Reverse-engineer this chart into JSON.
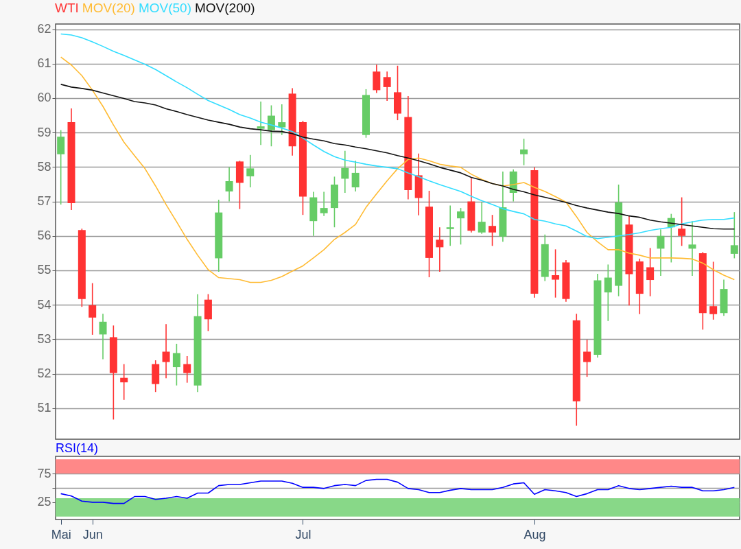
{
  "chart_data": [
    {
      "type": "candlestick",
      "grid": "y",
      "tick_labels": "y",
      "categories": [
        null,
        null,
        null,
        null,
        null,
        null,
        null,
        null,
        null,
        null,
        null,
        null,
        null,
        null,
        null,
        null,
        null,
        null,
        null,
        null,
        null,
        null,
        null,
        null,
        null,
        null,
        null,
        null,
        null,
        null,
        null,
        null,
        null,
        null,
        null,
        null,
        null,
        null,
        null,
        null,
        null,
        null,
        null,
        null,
        null,
        null,
        null,
        null,
        null,
        null,
        null,
        null,
        null,
        null,
        null,
        null,
        null,
        null,
        null,
        null,
        null,
        null,
        null,
        null,
        null
      ],
      "ylim": [
        50.1,
        62.15
      ],
      "yticks": [
        51,
        52,
        53,
        54,
        55,
        56,
        57,
        58,
        59,
        60,
        61,
        62
      ],
      "series": [
        {
          "name": "WTI",
          "type": "candlestick",
          "color": "#ff3333",
          "ohlc": [
            [
              58.37,
              59.07,
              56.91,
              58.88
            ],
            [
              59.3,
              59.7,
              56.75,
              56.95
            ],
            [
              56.17,
              56.21,
              53.94,
              54.17
            ],
            [
              53.99,
              54.63,
              53.13,
              53.63
            ],
            [
              53.14,
              53.74,
              52.42,
              53.51
            ],
            [
              53.06,
              53.4,
              50.67,
              52.02
            ],
            [
              51.88,
              52.28,
              51.24,
              51.75
            ],
            null,
            null,
            [
              52.28,
              52.39,
              51.47,
              51.7
            ],
            [
              52.64,
              53.44,
              51.87,
              52.34
            ],
            [
              52.19,
              52.87,
              51.66,
              52.6
            ],
            [
              52.28,
              52.51,
              51.74,
              52.02
            ],
            [
              51.66,
              54.31,
              51.47,
              53.67
            ],
            [
              54.15,
              54.31,
              53.24,
              53.58
            ],
            [
              55.35,
              57.05,
              54.96,
              56.68
            ],
            [
              57.29,
              57.99,
              57.0,
              57.59
            ],
            [
              58.16,
              58.18,
              56.78,
              57.54
            ],
            [
              57.73,
              58.35,
              57.41,
              57.96
            ],
            [
              59.11,
              59.9,
              58.64,
              59.18
            ],
            [
              59.07,
              59.79,
              58.6,
              59.49
            ],
            [
              59.15,
              59.82,
              58.93,
              59.3
            ],
            [
              60.13,
              60.29,
              58.33,
              58.6
            ],
            [
              59.3,
              59.34,
              56.61,
              57.14
            ],
            [
              56.43,
              57.28,
              56.0,
              57.12
            ],
            [
              56.66,
              57.28,
              56.58,
              56.81
            ],
            [
              56.81,
              57.72,
              56.25,
              57.49
            ],
            [
              57.66,
              58.47,
              57.25,
              57.97
            ],
            [
              57.41,
              58.18,
              57.29,
              57.83
            ],
            [
              58.93,
              60.26,
              58.85,
              60.09
            ],
            [
              60.77,
              60.97,
              60.15,
              60.23
            ],
            [
              60.61,
              60.77,
              59.92,
              60.32
            ],
            [
              60.17,
              60.94,
              59.36,
              59.55
            ],
            [
              59.45,
              60.06,
              57.06,
              57.33
            ],
            [
              57.76,
              58.39,
              56.6,
              57.1
            ],
            [
              56.85,
              57.31,
              54.8,
              55.36
            ],
            [
              55.89,
              56.25,
              54.96,
              55.67
            ],
            [
              56.2,
              56.88,
              55.71,
              56.25
            ],
            [
              56.51,
              56.81,
              55.75,
              56.71
            ],
            [
              57.0,
              57.68,
              56.1,
              56.15
            ],
            [
              56.1,
              56.98,
              56.06,
              56.41
            ],
            [
              56.29,
              56.61,
              55.71,
              56.1
            ],
            [
              55.98,
              57.87,
              55.83,
              56.83
            ],
            [
              57.25,
              57.93,
              57.0,
              57.87
            ],
            [
              58.37,
              58.82,
              58.05,
              58.51
            ],
            [
              57.91,
              57.99,
              54.21,
              54.32
            ],
            [
              54.81,
              56.04,
              54.69,
              55.76
            ],
            [
              54.86,
              55.61,
              54.21,
              54.73
            ],
            [
              55.23,
              55.3,
              54.09,
              54.17
            ],
            [
              53.55,
              53.74,
              50.49,
              51.2
            ],
            [
              52.64,
              52.99,
              51.91,
              52.34
            ],
            [
              52.55,
              54.9,
              52.47,
              54.71
            ],
            [
              54.36,
              55.17,
              53.53,
              54.79
            ],
            [
              54.55,
              57.49,
              54.25,
              56.97
            ],
            [
              56.33,
              56.58,
              53.98,
              54.89
            ],
            [
              55.26,
              55.34,
              53.73,
              54.32
            ],
            [
              55.09,
              55.65,
              54.25,
              54.72
            ],
            [
              55.63,
              56.19,
              54.84,
              56.0
            ],
            [
              56.25,
              56.64,
              55.23,
              56.52
            ],
            [
              56.21,
              57.12,
              55.71,
              56.0
            ],
            [
              55.63,
              56.43,
              54.84,
              55.75
            ],
            [
              55.5,
              55.53,
              53.28,
              53.76
            ],
            [
              53.96,
              55.25,
              53.57,
              53.73
            ],
            [
              53.76,
              54.73,
              53.68,
              54.46
            ],
            [
              55.48,
              56.69,
              55.35,
              55.73
            ]
          ],
          "colors": [
            "#66cc66",
            "#ff3333",
            "#ff3333",
            "#ff3333",
            "#66cc66",
            "#ff3333",
            "#ff3333",
            null,
            null,
            "#ff3333",
            "#ff3333",
            "#66cc66",
            "#ff3333",
            "#66cc66",
            "#ff3333",
            "#66cc66",
            "#66cc66",
            "#ff3333",
            "#66cc66",
            "#66cc66",
            "#66cc66",
            "#66cc66",
            "#ff3333",
            "#ff3333",
            "#66cc66",
            "#66cc66",
            "#66cc66",
            "#66cc66",
            "#66cc66",
            "#66cc66",
            "#ff3333",
            "#ff3333",
            "#ff3333",
            "#ff3333",
            "#ff3333",
            "#ff3333",
            "#ff3333",
            "#66cc66",
            "#66cc66",
            "#ff3333",
            "#66cc66",
            "#ff3333",
            "#66cc66",
            "#66cc66",
            "#66cc66",
            "#ff3333",
            "#66cc66",
            "#ff3333",
            "#ff3333",
            "#ff3333",
            "#ff3333",
            "#66cc66",
            "#66cc66",
            "#66cc66",
            "#ff3333",
            "#ff3333",
            "#ff3333",
            "#66cc66",
            "#66cc66",
            "#ff3333",
            "#66cc66",
            "#ff3333",
            "#ff3333",
            "#66cc66",
            "#66cc66"
          ]
        },
        {
          "name": "MOV(20)",
          "type": "line",
          "color": "#ffbb33",
          "values": [
            61.19,
            60.96,
            60.65,
            60.23,
            59.76,
            59.22,
            58.72,
            58.33,
            57.95,
            57.45,
            56.91,
            56.41,
            55.9,
            55.44,
            55.02,
            54.79,
            54.76,
            54.73,
            54.65,
            54.65,
            54.71,
            54.82,
            54.98,
            55.13,
            55.36,
            55.6,
            55.9,
            56.1,
            56.33,
            56.83,
            57.22,
            57.6,
            57.95,
            58.22,
            58.26,
            58.18,
            58.08,
            58.03,
            57.99,
            57.79,
            57.64,
            57.52,
            57.45,
            57.49,
            57.55,
            57.41,
            57.29,
            57.14,
            56.98,
            56.56,
            56.1,
            55.83,
            55.6,
            55.6,
            55.5,
            55.44,
            55.36,
            55.36,
            55.36,
            55.35,
            55.33,
            55.21,
            55.02,
            54.86,
            54.73
          ]
        },
        {
          "name": "MOV(50)",
          "type": "line",
          "color": "#33ddff",
          "values": [
            61.86,
            61.83,
            61.75,
            61.63,
            61.5,
            61.36,
            61.24,
            61.11,
            60.98,
            60.83,
            60.65,
            60.47,
            60.3,
            60.11,
            59.93,
            59.8,
            59.67,
            59.52,
            59.42,
            59.3,
            59.22,
            59.13,
            59.03,
            58.84,
            58.64,
            58.45,
            58.3,
            58.2,
            58.14,
            58.08,
            58.03,
            57.99,
            57.95,
            57.83,
            57.72,
            57.6,
            57.49,
            57.39,
            57.29,
            57.15,
            57.02,
            56.91,
            56.79,
            56.71,
            56.64,
            56.48,
            56.43,
            56.35,
            56.29,
            56.14,
            55.98,
            55.92,
            55.96,
            56.0,
            56.04,
            56.09,
            56.16,
            56.21,
            56.25,
            56.35,
            56.41,
            56.46,
            56.48,
            56.48,
            56.52
          ]
        },
        {
          "name": "MOV(200)",
          "type": "line",
          "color": "#111111",
          "values": [
            60.4,
            60.32,
            60.28,
            60.23,
            60.15,
            60.07,
            59.99,
            59.9,
            59.86,
            59.8,
            59.69,
            59.61,
            59.52,
            59.44,
            59.36,
            59.3,
            59.24,
            59.16,
            59.11,
            59.08,
            59.04,
            59.03,
            58.97,
            58.87,
            58.81,
            58.76,
            58.68,
            58.64,
            58.58,
            58.53,
            58.47,
            58.41,
            58.33,
            58.26,
            58.18,
            58.09,
            57.99,
            57.91,
            57.83,
            57.7,
            57.62,
            57.52,
            57.45,
            57.35,
            57.28,
            57.19,
            57.12,
            57.05,
            56.97,
            56.88,
            56.81,
            56.75,
            56.69,
            56.65,
            56.58,
            56.54,
            56.46,
            56.41,
            56.37,
            56.33,
            56.29,
            56.25,
            56.21,
            56.2,
            56.2
          ]
        }
      ]
    },
    {
      "type": "line",
      "title": "RSI(14)",
      "grid": "y",
      "categories": [
        "Mai",
        null,
        null,
        "Jun",
        null,
        null,
        null,
        null,
        null,
        null,
        null,
        null,
        null,
        null,
        null,
        null,
        null,
        null,
        null,
        null,
        null,
        null,
        null,
        "Jul",
        null,
        null,
        null,
        null,
        null,
        null,
        null,
        null,
        null,
        null,
        null,
        null,
        null,
        null,
        null,
        null,
        null,
        null,
        null,
        null,
        null,
        "Aug",
        null,
        null,
        null,
        null,
        null,
        null,
        null,
        null,
        null,
        null,
        null,
        null,
        null,
        null,
        null,
        null,
        null,
        null,
        null
      ],
      "ylim": [
        -5,
        105
      ],
      "yticks": [
        25,
        {
          "value": 50,
          "label": null
        },
        75
      ],
      "bands": [
        {
          "axis": "y",
          "from": 75,
          "to": 100,
          "color": "#ff8888"
        },
        {
          "axis": "y",
          "from": 0,
          "to": 32,
          "color": "#88d888"
        }
      ],
      "series": [
        {
          "color": "#0000ff",
          "values": [
            40,
            36,
            27,
            25,
            25,
            23,
            23,
            35,
            35,
            30,
            32,
            35,
            32,
            41,
            41,
            54,
            56,
            56,
            59,
            62,
            62,
            62,
            58,
            51,
            51,
            49,
            54,
            56,
            54,
            63,
            65,
            65,
            60,
            49,
            47,
            42,
            42,
            46,
            49,
            47,
            47,
            47,
            51,
            57,
            59,
            39,
            47,
            45,
            42,
            35,
            40,
            47,
            47,
            54,
            49,
            47,
            49,
            51,
            53,
            51,
            51,
            45,
            45,
            47,
            51
          ]
        }
      ]
    }
  ]
}
